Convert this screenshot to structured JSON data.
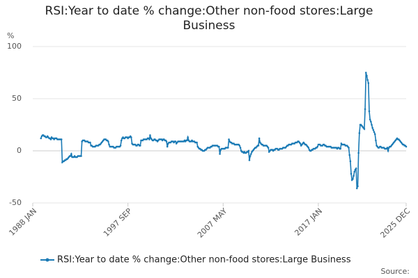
{
  "chart_data": {
    "type": "line",
    "title": "RSI:Year to date % change:Other non-food stores:Large Business",
    "ylabel": "%",
    "source": "Source:",
    "categories": [
      "1988 JAN",
      null,
      null,
      null,
      null,
      null,
      null,
      null,
      null,
      null,
      null,
      null,
      null,
      null,
      null,
      null,
      null,
      null,
      null,
      null,
      null,
      null,
      null,
      null,
      null,
      null,
      null,
      null,
      null,
      null,
      null,
      null,
      null,
      null,
      null,
      null,
      null,
      null,
      null,
      null,
      null,
      null,
      null,
      null,
      null,
      null,
      null,
      null,
      null,
      null,
      null,
      null,
      null,
      null,
      null,
      null,
      null,
      null,
      null,
      null,
      null,
      null,
      null,
      null,
      null,
      null,
      null,
      null,
      null,
      null,
      null,
      null,
      null,
      null,
      null,
      null,
      null,
      null,
      null,
      null,
      null,
      null,
      null,
      null,
      null,
      null,
      null,
      null,
      null,
      null,
      null,
      null,
      null,
      null,
      null,
      null,
      null,
      null,
      null,
      null,
      null,
      null,
      null,
      null,
      null,
      null,
      null,
      null,
      null,
      null,
      null,
      null,
      null,
      null,
      null,
      null,
      "1997 SEP",
      null,
      null,
      null,
      null,
      null,
      null,
      null,
      null,
      null,
      null,
      null,
      null,
      null,
      null,
      null,
      null,
      null,
      null,
      null,
      null,
      null,
      null,
      null,
      null,
      null,
      null,
      null,
      null,
      null,
      null,
      null,
      null,
      null,
      null,
      null,
      null,
      null,
      null,
      null,
      null,
      null,
      null,
      null,
      null,
      null,
      null,
      null,
      null,
      null,
      null,
      null,
      null,
      null,
      null,
      null,
      null,
      null,
      null,
      null,
      null,
      null,
      null,
      null,
      null,
      null,
      null,
      null,
      null,
      null,
      null,
      null,
      null,
      null,
      null,
      null,
      null,
      null,
      null,
      null,
      null,
      null,
      null,
      null,
      null,
      null,
      null,
      null,
      null,
      null,
      null,
      null,
      null,
      null,
      null,
      null,
      null,
      null,
      null,
      null,
      null,
      null,
      null,
      null,
      null,
      null,
      null,
      null,
      null,
      null,
      null,
      null,
      null,
      null,
      null,
      null,
      "2007 MAY",
      null,
      null,
      null,
      null,
      null,
      null,
      null,
      null,
      null,
      null,
      null,
      null,
      null,
      null,
      null,
      null,
      null,
      null,
      null,
      null,
      null,
      null,
      null,
      null,
      null,
      null,
      null,
      null,
      null,
      null,
      null,
      null,
      null,
      null,
      null,
      null,
      null,
      null,
      null,
      null,
      null,
      null,
      null,
      null,
      null,
      null,
      null,
      null,
      null,
      null,
      null,
      null,
      null,
      null,
      null,
      null,
      null,
      null,
      null,
      null,
      null,
      null,
      null,
      null,
      null,
      null,
      null,
      null,
      null,
      null,
      null,
      null,
      null,
      null,
      null,
      null,
      null,
      null,
      null,
      null,
      null,
      null,
      null,
      null,
      null,
      null,
      null,
      null,
      null,
      null,
      null,
      null,
      null,
      null,
      null,
      null,
      null,
      null,
      null,
      null,
      null,
      null,
      null,
      null,
      null,
      null,
      null,
      null,
      null,
      null,
      null,
      null,
      null,
      null,
      null,
      "2017 JAN",
      null,
      null,
      null,
      null,
      null,
      null,
      null,
      null,
      null,
      null,
      null,
      null,
      null,
      null,
      null,
      null,
      null,
      null,
      null,
      null,
      null,
      null,
      null,
      null,
      null,
      null,
      null,
      null,
      null,
      null,
      null,
      null,
      null,
      null,
      null,
      null,
      null,
      null,
      null,
      null,
      null,
      null,
      null,
      null,
      null,
      null,
      null,
      null,
      null,
      null,
      null,
      null,
      null,
      null,
      null,
      null,
      null,
      null,
      null,
      null,
      null,
      null,
      null,
      null,
      null,
      null,
      null,
      null,
      null,
      null,
      null,
      null,
      null,
      null,
      null,
      null,
      null,
      null,
      null,
      null,
      null,
      null,
      null,
      null,
      null,
      null,
      null,
      null,
      null,
      null,
      null,
      null,
      null,
      null,
      null,
      null,
      null,
      null,
      null,
      null,
      null,
      null,
      null,
      null,
      null,
      null,
      "2025 DEC"
    ],
    "series": [
      {
        "name": "RSI:Year to date % change:Other non-food stores:Large Business",
        "color": "#1a7ab5",
        "values": [
          null,
          null,
          null,
          null,
          null,
          null,
          null,
          null,
          null,
          null,
          12,
          14,
          15,
          15,
          14,
          14,
          13,
          13,
          14,
          13,
          12,
          12,
          11,
          13,
          12,
          12,
          11,
          12,
          12,
          12,
          11,
          11,
          11,
          11,
          11,
          11,
          -11,
          -10,
          -10,
          -9,
          -9,
          -8,
          -8,
          -7,
          -6,
          -5,
          -5,
          -3,
          -6,
          -6,
          -6,
          -5,
          -6,
          -6,
          -6,
          -5,
          -5,
          -5,
          -5,
          -5,
          9,
          10,
          10,
          10,
          9,
          9,
          9,
          9,
          8,
          8,
          8,
          5,
          5,
          4,
          4,
          4,
          4,
          5,
          5,
          5,
          5,
          6,
          6,
          7,
          8,
          9,
          10,
          11,
          11,
          11,
          10,
          10,
          9,
          6,
          4,
          4,
          4,
          4,
          4,
          3,
          3,
          3,
          4,
          4,
          4,
          4,
          4,
          5,
          10,
          12,
          13,
          12,
          12,
          13,
          13,
          13,
          12,
          13,
          13,
          14,
          13,
          7,
          6,
          6,
          6,
          6,
          5,
          5,
          6,
          6,
          5,
          5,
          10,
          10,
          10,
          11,
          11,
          11,
          11,
          11,
          12,
          12,
          11,
          15,
          12,
          11,
          10,
          10,
          11,
          11,
          10,
          10,
          9,
          10,
          11,
          11,
          11,
          11,
          10,
          11,
          11,
          10,
          10,
          9,
          4,
          7,
          8,
          8,
          8,
          9,
          9,
          9,
          8,
          9,
          9,
          7,
          8,
          9,
          9,
          9,
          9,
          9,
          9,
          9,
          9,
          10,
          9,
          10,
          10,
          13,
          10,
          9,
          9,
          9,
          10,
          9,
          9,
          9,
          8,
          8,
          8,
          4,
          3,
          2,
          2,
          1,
          1,
          0,
          0,
          0,
          1,
          1,
          2,
          3,
          3,
          3,
          3,
          4,
          4,
          5,
          5,
          5,
          5,
          5,
          5,
          5,
          4,
          4,
          -3,
          1,
          2,
          2,
          2,
          2,
          2,
          3,
          3,
          3,
          3,
          11,
          9,
          8,
          8,
          7,
          7,
          7,
          6,
          6,
          6,
          6,
          6,
          6,
          5,
          3,
          0,
          -1,
          -1,
          -2,
          -1,
          -2,
          -2,
          -1,
          -1,
          0,
          -9,
          -5,
          -3,
          -1,
          0,
          1,
          2,
          3,
          3,
          4,
          5,
          5,
          12,
          8,
          7,
          6,
          6,
          5,
          5,
          5,
          5,
          5,
          4,
          3,
          -1,
          0,
          1,
          1,
          1,
          0,
          1,
          1,
          2,
          2,
          2,
          1,
          1,
          2,
          2,
          2,
          2,
          3,
          3,
          3,
          3,
          4,
          5,
          5,
          6,
          6,
          6,
          6,
          7,
          7,
          7,
          7,
          8,
          8,
          8,
          9,
          9,
          8,
          7,
          5,
          6,
          7,
          8,
          7,
          6,
          6,
          5,
          4,
          3,
          1,
          0,
          0,
          1,
          1,
          2,
          2,
          2,
          3,
          3,
          4,
          6,
          6,
          6,
          5,
          5,
          5,
          6,
          6,
          5,
          5,
          4,
          4,
          4,
          4,
          4,
          4,
          3,
          3,
          3,
          3,
          3,
          3,
          3,
          2,
          3,
          3,
          2,
          2,
          7,
          6,
          6,
          6,
          6,
          5,
          5,
          5,
          4,
          3,
          -4,
          -10,
          -22,
          -28,
          -27,
          -24,
          -20,
          -18,
          -17,
          -36,
          -34,
          -2,
          17,
          25,
          25,
          24,
          23,
          22,
          21,
          40,
          75,
          72,
          68,
          65,
          38,
          30,
          28,
          25,
          22,
          20,
          18,
          16,
          10,
          5,
          4,
          3,
          3,
          4,
          4,
          3,
          3,
          3,
          3,
          2,
          2,
          2,
          3,
          0,
          3,
          4,
          4,
          5,
          6,
          7,
          8,
          9,
          10,
          11,
          12,
          11,
          11,
          10,
          9,
          8,
          7,
          6,
          6,
          5,
          5,
          4
        ]
      }
    ],
    "ylim": [
      -50,
      100
    ],
    "yticks": [
      -50,
      0,
      50,
      100
    ],
    "grid": true,
    "legend": "bottom"
  }
}
